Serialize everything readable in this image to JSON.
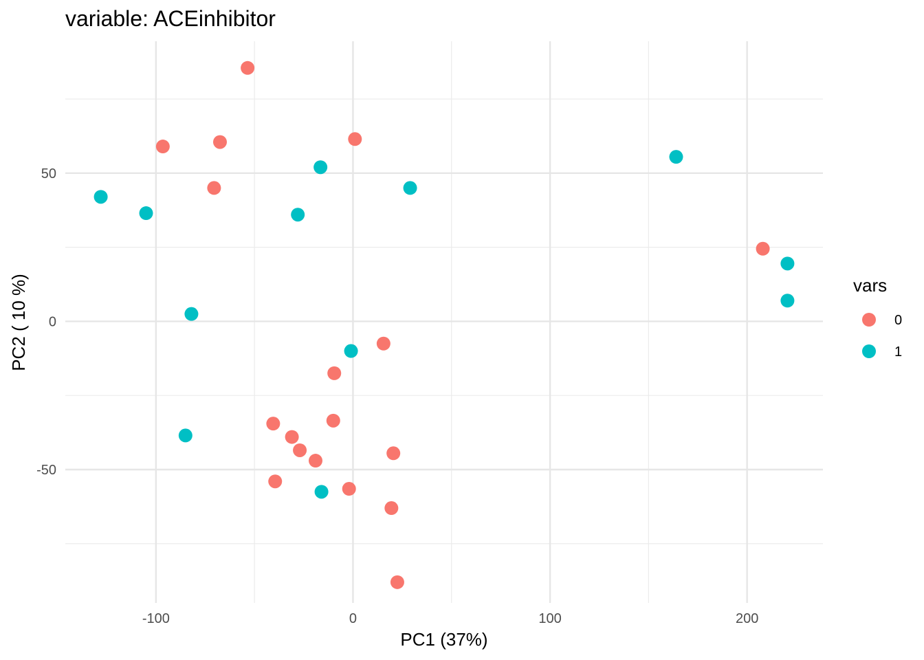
{
  "chart_data": {
    "type": "scatter",
    "title": "variable: ACEinhibitor",
    "xlabel": "PC1 (37%)",
    "ylabel": "PC2 ( 10 %)",
    "xlim": [
      -146,
      238.5
    ],
    "ylim": [
      -95,
      94.5
    ],
    "x_ticks": [
      -100,
      0,
      100,
      200
    ],
    "y_ticks": [
      -50,
      0,
      50
    ],
    "x_tick_labels": [
      "-100",
      "0",
      "100",
      "200"
    ],
    "y_tick_labels": [
      "-50",
      "0",
      "50"
    ],
    "grid": true,
    "legend": {
      "title": "vars",
      "placement": "right",
      "entries": [
        {
          "label": "0",
          "color": "#F8766D"
        },
        {
          "label": "1",
          "color": "#00BFC4"
        }
      ]
    },
    "series": [
      {
        "name": "0",
        "color": "#F8766D",
        "points": [
          {
            "x": -53.5,
            "y": 85.5
          },
          {
            "x": -96.5,
            "y": 59
          },
          {
            "x": -67.5,
            "y": 60.5
          },
          {
            "x": 1,
            "y": 61.5
          },
          {
            "x": -70.5,
            "y": 45
          },
          {
            "x": 208,
            "y": 24.5
          },
          {
            "x": 15.5,
            "y": -7.5
          },
          {
            "x": -9.5,
            "y": -17.5
          },
          {
            "x": -40.5,
            "y": -34.5
          },
          {
            "x": -10,
            "y": -33.5
          },
          {
            "x": -31,
            "y": -39
          },
          {
            "x": -27,
            "y": -43.5
          },
          {
            "x": -19,
            "y": -47
          },
          {
            "x": 20.5,
            "y": -44.5
          },
          {
            "x": -39.5,
            "y": -54
          },
          {
            "x": -2,
            "y": -56.5
          },
          {
            "x": 19.5,
            "y": -63
          },
          {
            "x": 22.5,
            "y": -88
          }
        ]
      },
      {
        "name": "1",
        "color": "#00BFC4",
        "points": [
          {
            "x": -128,
            "y": 42
          },
          {
            "x": -105,
            "y": 36.5
          },
          {
            "x": -16.5,
            "y": 52
          },
          {
            "x": -28,
            "y": 36
          },
          {
            "x": 29,
            "y": 45
          },
          {
            "x": 164,
            "y": 55.5
          },
          {
            "x": 220.5,
            "y": 19.5
          },
          {
            "x": 220.5,
            "y": 7
          },
          {
            "x": -82,
            "y": 2.5
          },
          {
            "x": -1,
            "y": -10
          },
          {
            "x": -85,
            "y": -38.5
          },
          {
            "x": -16,
            "y": -57.5
          }
        ]
      }
    ]
  }
}
